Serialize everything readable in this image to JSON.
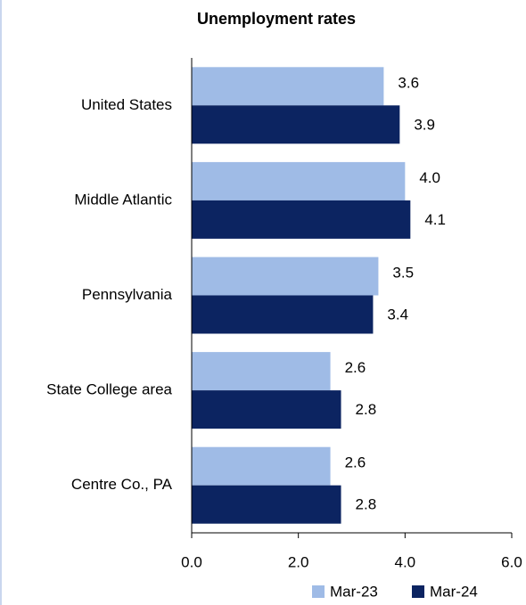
{
  "chart_data": {
    "type": "bar",
    "orientation": "horizontal",
    "title": "Unemployment rates",
    "categories": [
      "United States",
      "Middle Atlantic",
      "Pennsylvania",
      "State College area",
      "Centre Co., PA"
    ],
    "series": [
      {
        "name": "Mar-23",
        "color": "#9fbbe6",
        "values": [
          3.6,
          4.0,
          3.5,
          2.6,
          2.6
        ],
        "value_labels": [
          "3.6",
          "4.0",
          "3.5",
          "2.6",
          "2.6"
        ]
      },
      {
        "name": "Mar-24",
        "color": "#0c2461",
        "values": [
          3.9,
          4.1,
          3.4,
          2.8,
          2.8
        ],
        "value_labels": [
          "3.9",
          "4.1",
          "3.4",
          "2.8",
          "2.8"
        ]
      }
    ],
    "xlim": [
      0,
      6
    ],
    "xticks": [
      {
        "value": 0,
        "label": "0.0"
      },
      {
        "value": 2,
        "label": "2.0"
      },
      {
        "value": 4,
        "label": "4.0"
      },
      {
        "value": 6,
        "label": "6.0"
      }
    ],
    "legend": "bottom"
  }
}
